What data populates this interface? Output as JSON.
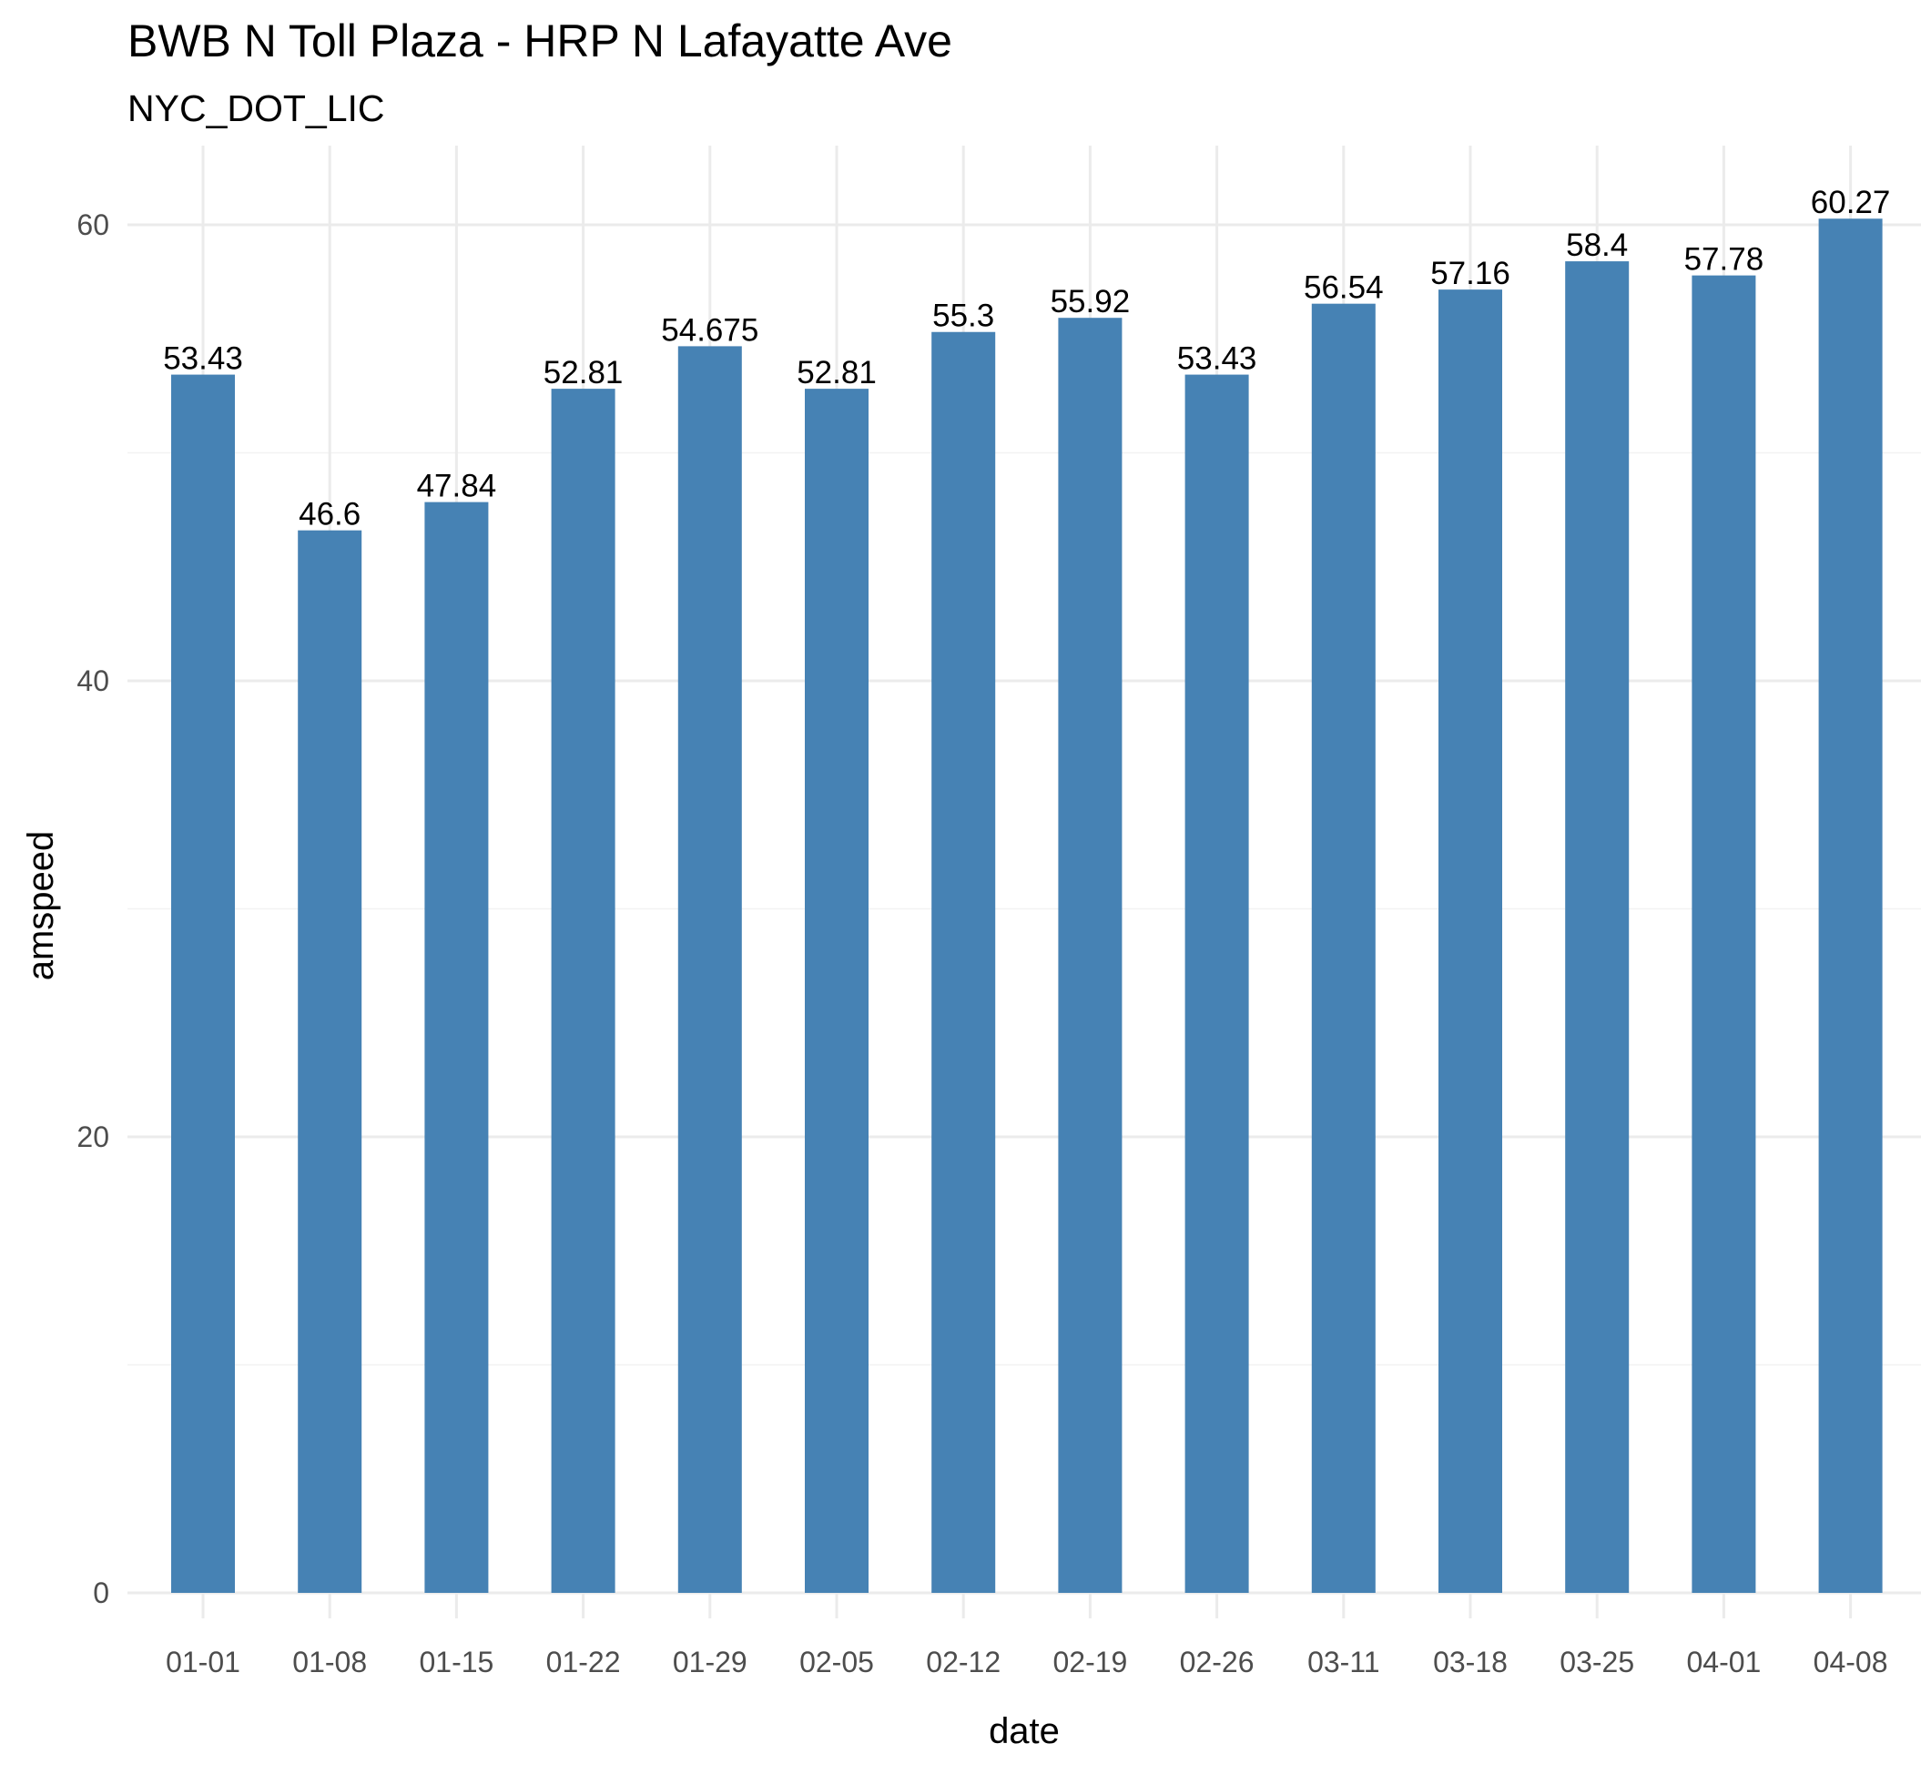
{
  "chart_data": {
    "type": "bar",
    "title": "BWB N Toll Plaza - HRP N Lafayatte Ave",
    "subtitle": "NYC_DOT_LIC",
    "xlabel": "date",
    "ylabel": "amspeed",
    "categories": [
      "01-01",
      "01-08",
      "01-15",
      "01-22",
      "01-29",
      "02-05",
      "02-12",
      "02-19",
      "02-26",
      "03-11",
      "03-18",
      "03-25",
      "04-01",
      "04-08"
    ],
    "values": [
      53.43,
      46.6,
      47.84,
      52.81,
      54.675,
      52.81,
      55.3,
      55.92,
      53.43,
      56.54,
      57.16,
      58.4,
      57.78,
      60.27
    ],
    "value_labels": [
      "53.43",
      "46.6",
      "47.84",
      "52.81",
      "54.675",
      "52.81",
      "55.3",
      "55.92",
      "53.43",
      "56.54",
      "57.16",
      "58.4",
      "57.78",
      "60.27"
    ],
    "ylim": [
      0,
      63.3
    ],
    "yticks": [
      0,
      20,
      40,
      60
    ],
    "yticks_minor": [
      10,
      30,
      50
    ],
    "bar_color": "#4682b4",
    "grid": true,
    "legend": "none"
  }
}
